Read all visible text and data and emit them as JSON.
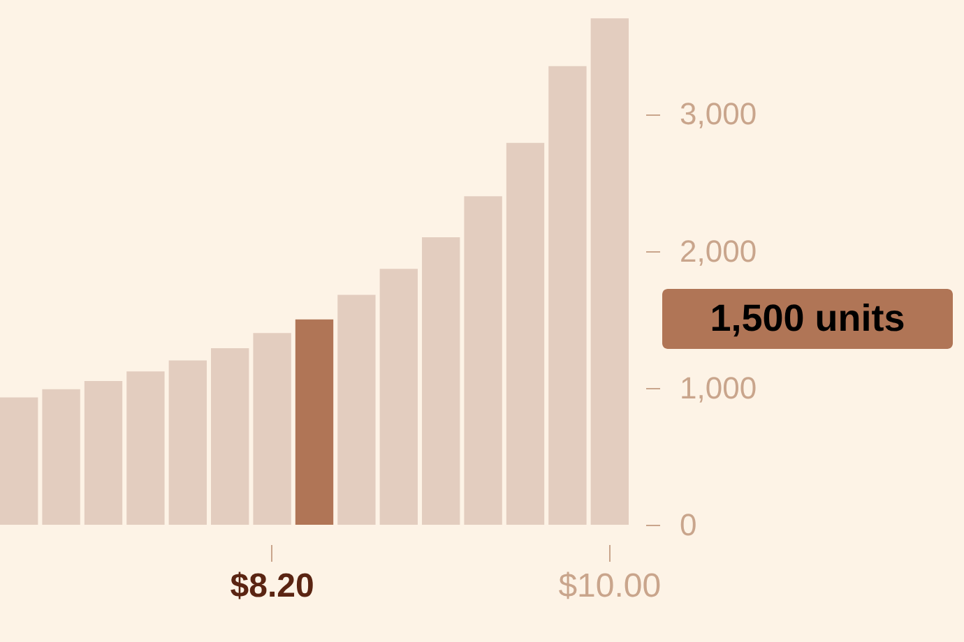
{
  "chart_data": {
    "type": "bar",
    "categories": [
      null,
      null,
      null,
      null,
      null,
      null,
      "$8.20",
      null,
      null,
      null,
      null,
      null,
      null,
      null,
      "$10.00"
    ],
    "values": [
      930,
      990,
      1050,
      1120,
      1200,
      1290,
      1400,
      1500,
      1680,
      1870,
      2100,
      2400,
      2790,
      3350,
      3700
    ],
    "colors": [
      "#e3cdbf",
      "#e3cdbf",
      "#e3cdbf",
      "#e3cdbf",
      "#e3cdbf",
      "#e3cdbf",
      "#e3cdbf",
      "#b07556",
      "#e3cdbf",
      "#e3cdbf",
      "#e3cdbf",
      "#e3cdbf",
      "#e3cdbf",
      "#e3cdbf",
      "#e3cdbf"
    ],
    "ylim": [
      0,
      3711
    ],
    "yticks": [
      0,
      {
        "value": 1000,
        "label": "1,000"
      },
      {
        "value": 2000,
        "label": "2,000"
      },
      {
        "value": 3000,
        "label": "3,000"
      }
    ],
    "annotations": [
      "1,500 units"
    ],
    "grid": false
  }
}
